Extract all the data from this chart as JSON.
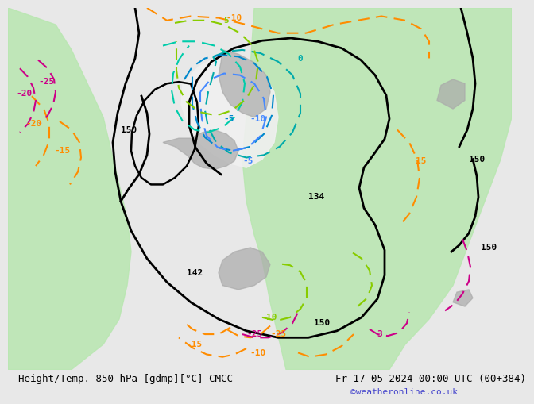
{
  "title_left": "Height/Temp. 850 hPa [gdmp][°C] CMCC",
  "title_right": "Fr 17-05-2024 00:00 UTC (00+384)",
  "watermark": "©weatheronline.co.uk",
  "bg_color": "#e8e8e8",
  "map_bg": "#c8e6c9",
  "label_fontsize": 9,
  "title_fontsize": 9,
  "watermark_color": "#4444cc"
}
